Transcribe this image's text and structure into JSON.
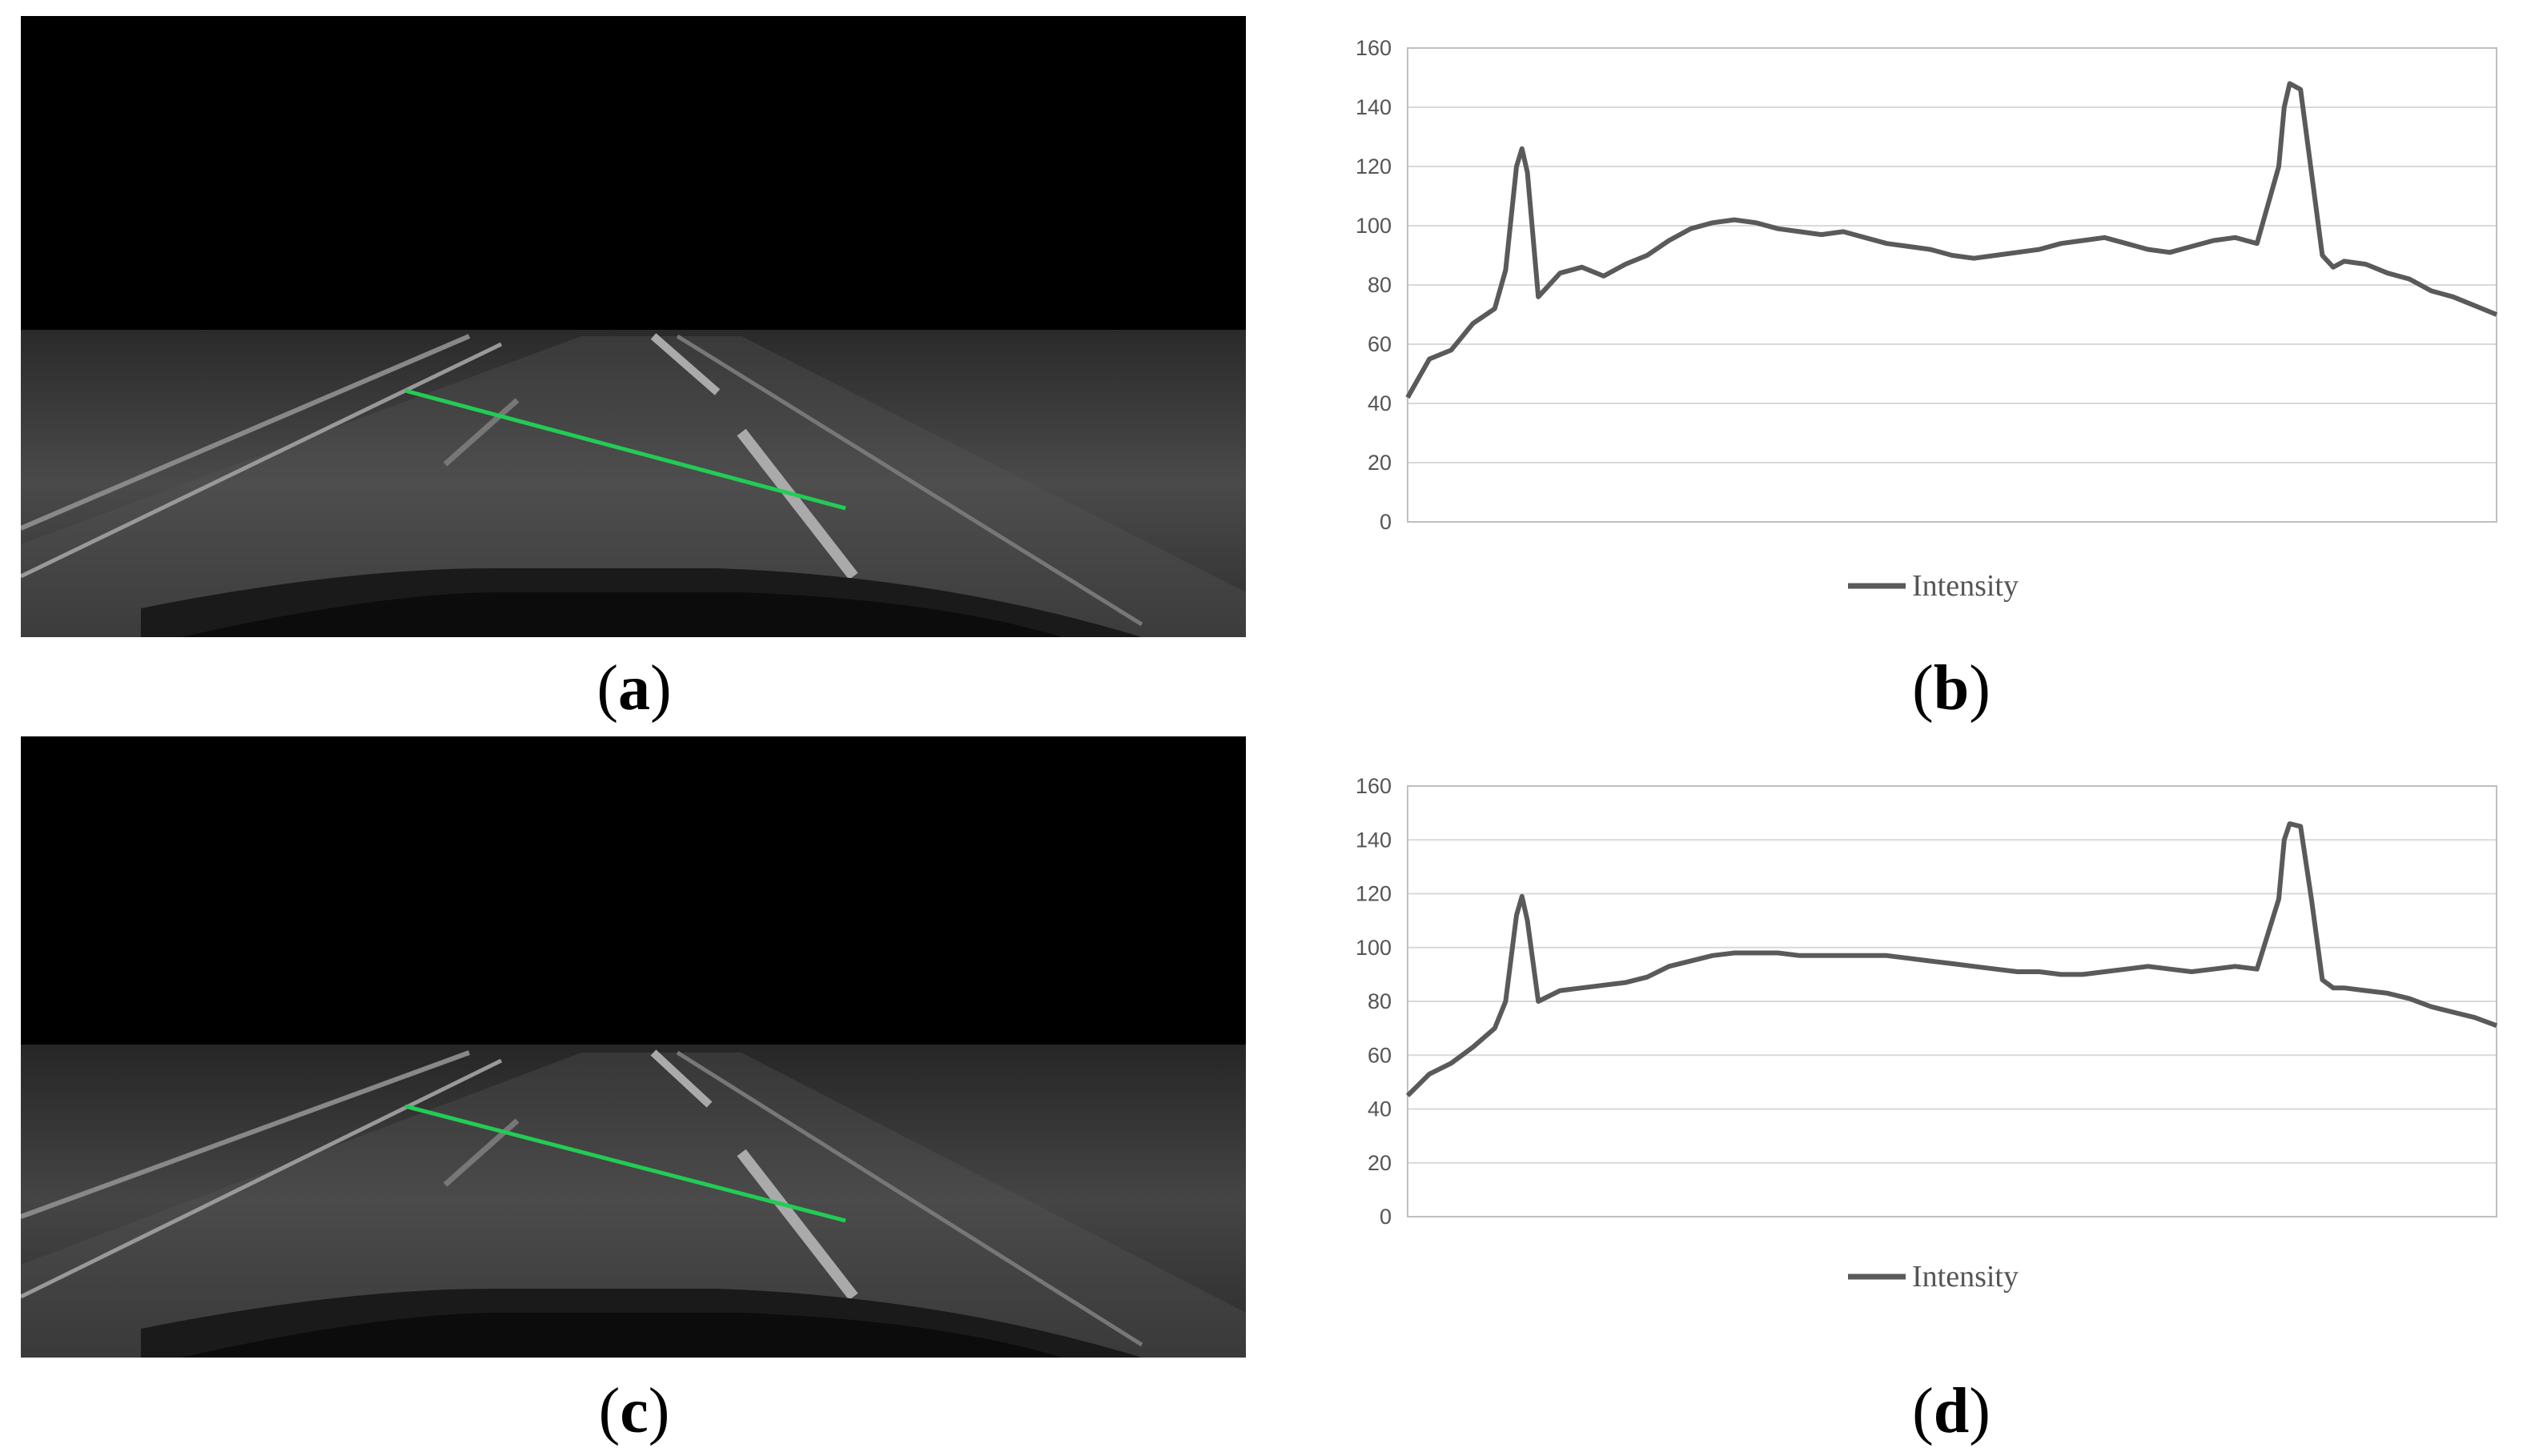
{
  "panels": [
    {
      "id": "a",
      "caption": "a"
    },
    {
      "id": "b",
      "caption": "b"
    },
    {
      "id": "c",
      "caption": "c"
    },
    {
      "id": "d",
      "caption": "d"
    }
  ],
  "colors": {
    "line": "#5a5a5a",
    "grid": "#d9d9d9",
    "scanline": "#22cc55",
    "photo_bg": "#000000"
  },
  "chart_data": [
    {
      "panel": "b",
      "type": "line",
      "title": "",
      "xlabel": "",
      "ylabel": "",
      "ylim": [
        0,
        160
      ],
      "yticks": [
        "0",
        "20",
        "40",
        "60",
        "80",
        "100",
        "120",
        "140",
        "160"
      ],
      "grid": true,
      "legend": "bottom",
      "series": [
        {
          "name": "Intensity",
          "x": [
            0,
            2,
            4,
            6,
            8,
            9,
            10,
            10.5,
            11,
            12,
            14,
            16,
            18,
            20,
            22,
            24,
            26,
            28,
            30,
            32,
            34,
            36,
            38,
            40,
            42,
            44,
            46,
            48,
            50,
            52,
            54,
            56,
            58,
            60,
            62,
            64,
            66,
            68,
            70,
            72,
            74,
            76,
            78,
            80,
            80.5,
            81,
            82,
            83,
            84,
            85,
            86,
            88,
            90,
            92,
            94,
            96,
            98,
            100
          ],
          "y": [
            42,
            55,
            58,
            67,
            72,
            85,
            120,
            126,
            118,
            76,
            84,
            86,
            83,
            87,
            90,
            95,
            99,
            101,
            102,
            101,
            99,
            98,
            97,
            98,
            96,
            94,
            93,
            92,
            90,
            89,
            90,
            91,
            92,
            94,
            95,
            96,
            94,
            92,
            91,
            93,
            95,
            96,
            94,
            120,
            140,
            148,
            146,
            118,
            90,
            86,
            88,
            87,
            84,
            82,
            78,
            76,
            73,
            70
          ]
        }
      ]
    },
    {
      "panel": "d",
      "type": "line",
      "title": "",
      "xlabel": "",
      "ylabel": "",
      "ylim": [
        0,
        160
      ],
      "yticks": [
        "0",
        "20",
        "40",
        "60",
        "80",
        "100",
        "120",
        "140",
        "160"
      ],
      "grid": true,
      "legend": "bottom",
      "series": [
        {
          "name": "Intensity",
          "x": [
            0,
            2,
            4,
            6,
            8,
            9,
            10,
            10.5,
            11,
            12,
            14,
            16,
            18,
            20,
            22,
            24,
            26,
            28,
            30,
            32,
            34,
            36,
            38,
            40,
            42,
            44,
            46,
            48,
            50,
            52,
            54,
            56,
            58,
            60,
            62,
            64,
            66,
            68,
            70,
            72,
            74,
            76,
            78,
            80,
            80.5,
            81,
            82,
            83,
            84,
            85,
            86,
            88,
            90,
            92,
            94,
            96,
            98,
            100
          ],
          "y": [
            45,
            53,
            57,
            63,
            70,
            80,
            112,
            119,
            110,
            80,
            84,
            85,
            86,
            87,
            89,
            93,
            95,
            97,
            98,
            98,
            98,
            97,
            97,
            97,
            97,
            97,
            96,
            95,
            94,
            93,
            92,
            91,
            91,
            90,
            90,
            91,
            92,
            93,
            92,
            91,
            92,
            93,
            92,
            118,
            140,
            146,
            145,
            118,
            88,
            85,
            85,
            84,
            83,
            81,
            78,
            76,
            74,
            71
          ]
        }
      ]
    }
  ]
}
